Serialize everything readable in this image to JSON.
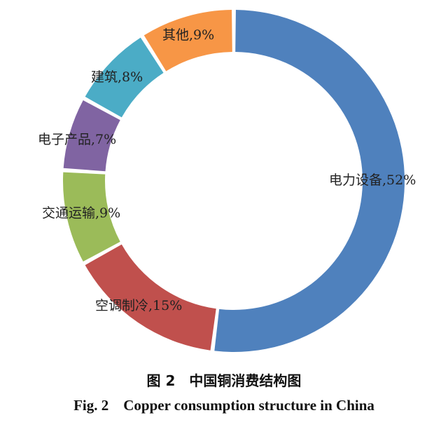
{
  "chart_data": {
    "type": "pie",
    "style": "donut",
    "slices": [
      {
        "label": "电力设备,52%",
        "value": 52,
        "color": "#4F81BD"
      },
      {
        "label": "空调制冷,15%",
        "value": 15,
        "color": "#C0504D"
      },
      {
        "label": "交通运输,9%",
        "value": 9,
        "color": "#9BBB59"
      },
      {
        "label": "电子产品,7%",
        "value": 7,
        "color": "#8064A2"
      },
      {
        "label": "建筑,8%",
        "value": 8,
        "color": "#4BACC6"
      },
      {
        "label": "其他,9%",
        "value": 9,
        "color": "#F79646"
      }
    ],
    "legend": "none"
  },
  "caption": {
    "cn": "图 2　中国铜消费结构图",
    "en": "Fig. 2    Copper consumption structure in China"
  }
}
